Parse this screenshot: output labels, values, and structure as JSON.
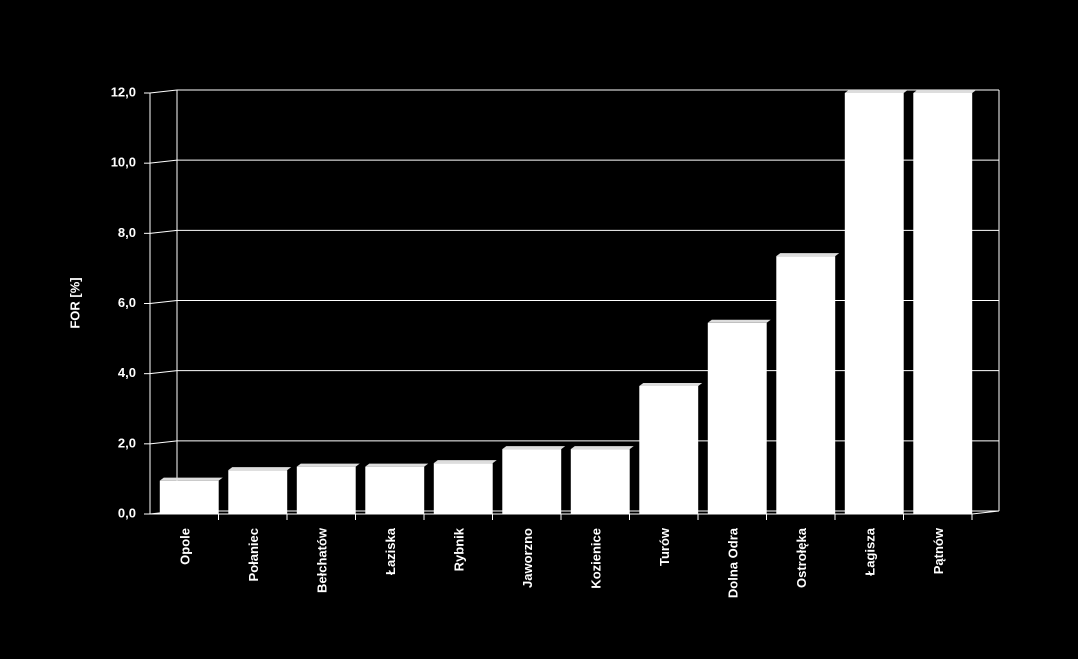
{
  "chart_data": {
    "type": "bar",
    "y_label": "FOR  [%]",
    "categories": [
      "Opole",
      "Połaniec",
      "Bełchatów",
      "Łaziska",
      "Rybnik",
      "Jaworzno",
      "Kozienice",
      "Turów",
      "Dolna Odra",
      "Ostrołęka",
      "Łagisza",
      "Pątnów"
    ],
    "values": [
      0.95,
      1.25,
      1.35,
      1.35,
      1.45,
      1.85,
      1.85,
      3.65,
      5.45,
      7.35,
      12.0,
      12.0
    ],
    "color": "#ffffff",
    "ylim": [
      0,
      12
    ],
    "yticks": [
      {
        "value": 0,
        "label": "0,0"
      },
      {
        "value": 2,
        "label": "2,0"
      },
      {
        "value": 4,
        "label": "4,0"
      },
      {
        "value": 6,
        "label": "6,0"
      },
      {
        "value": 8,
        "label": "8,0"
      },
      {
        "value": 10,
        "label": "10,0"
      },
      {
        "value": 12,
        "label": "12,0"
      }
    ],
    "grid": true
  }
}
